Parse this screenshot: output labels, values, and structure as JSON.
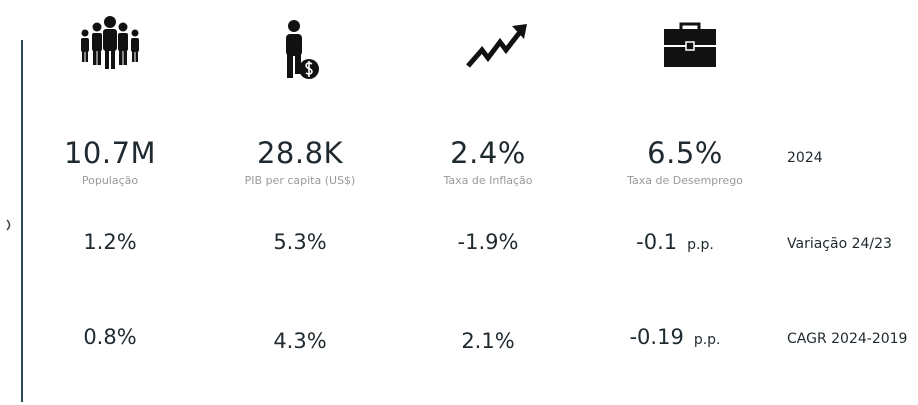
{
  "kpis": [
    {
      "value": "10.7M",
      "label": "População"
    },
    {
      "value": "28.8K",
      "label": "PIB per capita (US$)"
    },
    {
      "value": "2.4%",
      "label": "Taxa de Inflação"
    },
    {
      "value": "6.5%",
      "label": "Taxa de Desemprego"
    }
  ],
  "kpi_row_label": "2024",
  "rows": [
    {
      "label": "Variação 24/23",
      "values": [
        "1.2%",
        "5.3%",
        "-1.9%",
        "-0.1"
      ],
      "unit": "p.p."
    },
    {
      "label": "CAGR 2024-2019",
      "values": [
        "0.8%",
        "4.3%",
        "2.1%",
        "-0.19"
      ],
      "unit": "p.p."
    }
  ]
}
